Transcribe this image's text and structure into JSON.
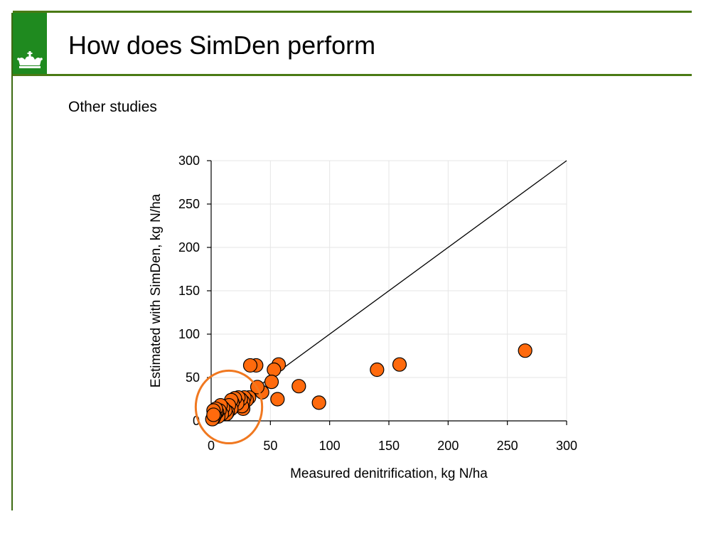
{
  "slide": {
    "title": "How does SimDen perform",
    "subtitle": "Other studies"
  },
  "colors": {
    "brand_green": "#1f8a1f",
    "rule_green": "#4a7a14",
    "marker_fill": "#ff6a0d",
    "highlight_ring": "#f07820"
  },
  "icons": {
    "logo": "royal-crown-icon"
  },
  "chart_data": {
    "type": "scatter",
    "title": "",
    "xlabel": "Measured denitrification, kg N/ha",
    "ylabel": "Estimated with SimDen, kg N/ha",
    "xlim": [
      0,
      300
    ],
    "ylim": [
      0,
      300
    ],
    "xticks": [
      0,
      50,
      100,
      150,
      200,
      250,
      300
    ],
    "yticks": [
      0,
      50,
      100,
      150,
      200,
      250,
      300
    ],
    "grid": true,
    "reference_line": {
      "type": "1:1",
      "from": [
        0,
        0
      ],
      "to": [
        300,
        300
      ]
    },
    "highlight": {
      "shape": "ellipse",
      "center": [
        15,
        16
      ],
      "radius_x": 28,
      "radius_y": 27
    },
    "series": [
      {
        "points": [
          [
            265,
            81
          ],
          [
            159,
            65
          ],
          [
            140,
            59
          ],
          [
            91,
            21
          ],
          [
            74,
            40
          ],
          [
            57,
            65
          ],
          [
            56,
            25
          ],
          [
            53,
            59
          ],
          [
            51,
            45
          ],
          [
            43,
            33
          ],
          [
            39,
            39
          ],
          [
            38,
            64
          ],
          [
            33,
            64
          ],
          [
            32,
            27
          ],
          [
            30,
            24
          ],
          [
            28,
            27
          ],
          [
            27,
            22
          ],
          [
            27,
            14
          ],
          [
            26,
            17
          ],
          [
            25,
            25
          ],
          [
            23,
            27
          ],
          [
            22,
            20
          ],
          [
            20,
            26
          ],
          [
            18,
            21
          ],
          [
            17,
            14
          ],
          [
            17,
            24
          ],
          [
            15,
            18
          ],
          [
            14,
            10
          ],
          [
            13,
            8
          ],
          [
            12,
            12
          ],
          [
            10,
            15
          ],
          [
            9,
            8
          ],
          [
            8,
            18
          ],
          [
            7,
            12
          ],
          [
            6,
            5
          ],
          [
            5,
            10
          ],
          [
            4,
            9
          ],
          [
            4,
            14
          ],
          [
            3,
            6
          ],
          [
            2,
            12
          ],
          [
            2,
            3
          ],
          [
            1,
            2
          ],
          [
            2,
            7
          ]
        ]
      }
    ]
  }
}
